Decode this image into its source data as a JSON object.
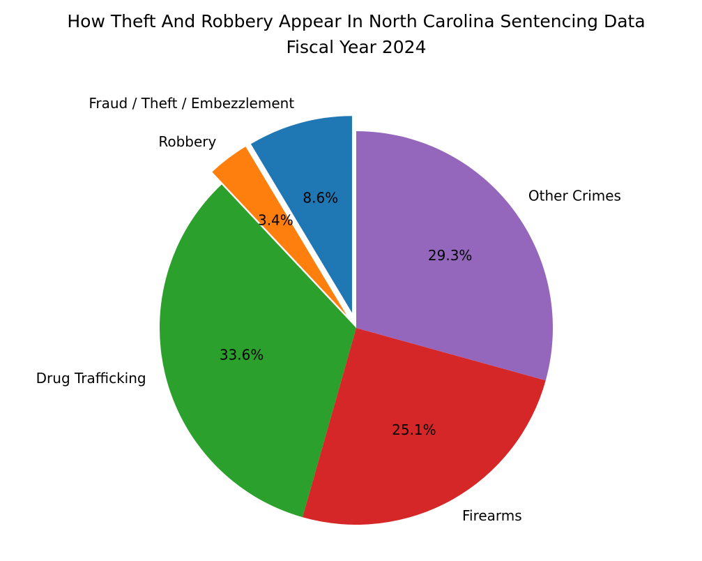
{
  "chart_data": {
    "type": "pie",
    "title": "How Theft And Robbery Appear In North Carolina Sentencing Data",
    "subtitle": "Fiscal Year 2024",
    "categories": [
      "Fraud / Theft / Embezzlement",
      "Robbery",
      "Drug Trafficking",
      "Firearms",
      "Other Crimes"
    ],
    "values": [
      8.6,
      3.4,
      33.6,
      25.1,
      29.3
    ],
    "value_labels": [
      "8.6%",
      "3.4%",
      "33.6%",
      "25.1%",
      "29.3%"
    ],
    "colors": [
      "#1f77b4",
      "#ff7f0e",
      "#2ca02c",
      "#d62728",
      "#9467bd"
    ],
    "explode": [
      0.08,
      0.08,
      0,
      0,
      0
    ],
    "start_angle": 90
  }
}
